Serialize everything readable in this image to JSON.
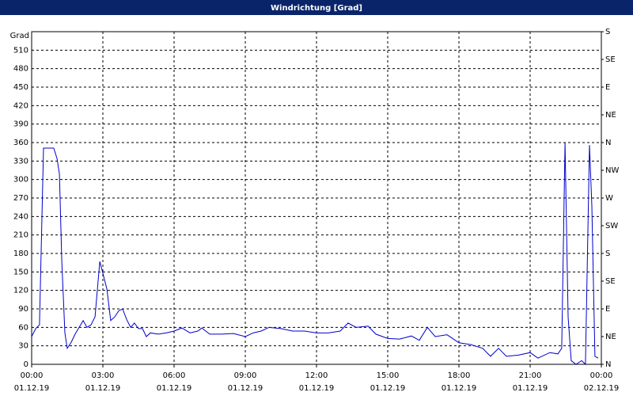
{
  "chart_data": {
    "type": "line",
    "title": "Windrichtung [Grad]",
    "y_label": "Grad",
    "color": "#0000cc",
    "grid": true,
    "x": [
      0,
      0.17,
      0.33,
      0.5,
      0.67,
      0.93,
      1.07,
      1.17,
      1.27,
      1.4,
      1.5,
      1.67,
      1.83,
      2.0,
      2.17,
      2.33,
      2.5,
      2.67,
      2.87,
      3.0,
      3.17,
      3.33,
      3.5,
      3.67,
      3.83,
      4.0,
      4.17,
      4.33,
      4.5,
      4.67,
      4.83,
      5.0,
      5.33,
      5.67,
      6.0,
      6.33,
      6.67,
      7.0,
      7.17,
      7.5,
      8.0,
      8.5,
      9.0,
      9.33,
      9.67,
      10.0,
      10.5,
      11.0,
      11.5,
      12.0,
      12.5,
      13.0,
      13.33,
      13.67,
      14.17,
      14.5,
      15.0,
      15.5,
      16.0,
      16.33,
      16.67,
      17.0,
      17.5,
      18.0,
      18.5,
      19.0,
      19.33,
      19.67,
      20.0,
      20.5,
      21.0,
      21.33,
      21.83,
      22.17,
      22.33,
      22.47,
      22.6,
      22.73,
      22.93,
      23.17,
      23.33,
      23.5,
      23.6,
      23.73,
      23.87
    ],
    "values": [
      45,
      58,
      64,
      351,
      351,
      351,
      334,
      309,
      167,
      51,
      26,
      36,
      49,
      60,
      71,
      60,
      64,
      77,
      167,
      148,
      122,
      71,
      77,
      87,
      90,
      73,
      60,
      67,
      58,
      58,
      45,
      51,
      49,
      51,
      54,
      59,
      51,
      54,
      59,
      49,
      49,
      50,
      45,
      51,
      54,
      60,
      58,
      54,
      54,
      51,
      51,
      54,
      67,
      60,
      62,
      49,
      42,
      41,
      46,
      39,
      60,
      45,
      48,
      35,
      32,
      26,
      13,
      26,
      13,
      15,
      19,
      10,
      19,
      17,
      26,
      360,
      77,
      6,
      0,
      6,
      0,
      356,
      257,
      13,
      10
    ],
    "xlim": [
      0,
      24
    ],
    "xticks": [
      {
        "value": 0,
        "label": "00:00"
      },
      {
        "value": 3,
        "label": "03:00"
      },
      {
        "value": 6,
        "label": "06:00"
      },
      {
        "value": 9,
        "label": "09:00"
      },
      {
        "value": 12,
        "label": "12:00"
      },
      {
        "value": 15,
        "label": "15:00"
      },
      {
        "value": 18,
        "label": "18:00"
      },
      {
        "value": 21,
        "label": "21:00"
      },
      {
        "value": 24,
        "label": "00:00"
      }
    ],
    "xtick_dates": [
      "01.12.19",
      "01.12.19",
      "01.12.19",
      "01.12.19",
      "01.12.19",
      "01.12.19",
      "01.12.19",
      "01.12.19",
      "02.12.19"
    ],
    "ylim": [
      0,
      540
    ],
    "yticks": [
      0,
      30,
      60,
      90,
      120,
      150,
      180,
      210,
      240,
      270,
      300,
      330,
      360,
      390,
      420,
      450,
      480,
      510
    ],
    "y2lim": [
      0,
      540
    ],
    "y2ticks": [
      {
        "value": 0,
        "label": "N"
      },
      {
        "value": 45,
        "label": "NE"
      },
      {
        "value": 90,
        "label": "E"
      },
      {
        "value": 135,
        "label": "SE"
      },
      {
        "value": 180,
        "label": "S"
      },
      {
        "value": 225,
        "label": "SW"
      },
      {
        "value": 270,
        "label": "W"
      },
      {
        "value": 315,
        "label": "NW"
      },
      {
        "value": 360,
        "label": "N"
      },
      {
        "value": 405,
        "label": "NE"
      },
      {
        "value": 450,
        "label": "E"
      },
      {
        "value": 495,
        "label": "SE"
      },
      {
        "value": 540,
        "label": "S"
      }
    ]
  }
}
